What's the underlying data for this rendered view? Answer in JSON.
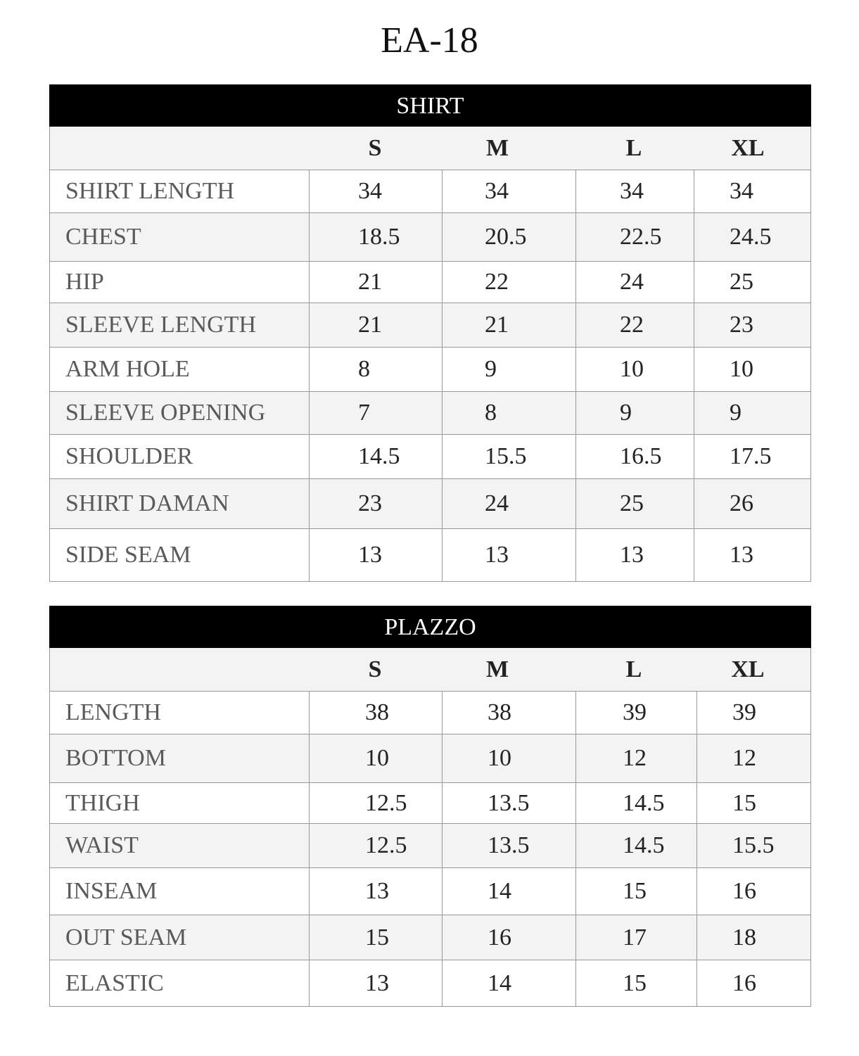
{
  "title": "EA-18",
  "tables": [
    {
      "name": "SHIRT",
      "sizes": [
        "S",
        "M",
        "L",
        "XL"
      ],
      "rows": [
        {
          "label": "SHIRT LENGTH",
          "values": [
            "34",
            "34",
            "34",
            "34"
          ]
        },
        {
          "label": "CHEST",
          "values": [
            "18.5",
            "20.5",
            "22.5",
            "24.5"
          ]
        },
        {
          "label": "HIP",
          "values": [
            "21",
            "22",
            "24",
            "25"
          ]
        },
        {
          "label": "SLEEVE LENGTH",
          "values": [
            "21",
            "21",
            "22",
            "23"
          ]
        },
        {
          "label": "ARM HOLE",
          "values": [
            "8",
            "9",
            "10",
            "10"
          ]
        },
        {
          "label": "SLEEVE OPENING",
          "values": [
            "7",
            "8",
            "9",
            "9"
          ]
        },
        {
          "label": "SHOULDER",
          "values": [
            "14.5",
            "15.5",
            "16.5",
            "17.5"
          ]
        },
        {
          "label": "SHIRT DAMAN",
          "values": [
            "23",
            "24",
            "25",
            "26"
          ]
        },
        {
          "label": "SIDE SEAM",
          "values": [
            "13",
            "13",
            "13",
            "13"
          ]
        }
      ]
    },
    {
      "name": "PLAZZO",
      "sizes": [
        "S",
        "M",
        "L",
        "XL"
      ],
      "rows": [
        {
          "label": "LENGTH",
          "values": [
            "38",
            "38",
            "39",
            "39"
          ]
        },
        {
          "label": "BOTTOM",
          "values": [
            "10",
            "10",
            "12",
            "12"
          ]
        },
        {
          "label": "THIGH",
          "values": [
            "12.5",
            "13.5",
            "14.5",
            "15"
          ]
        },
        {
          "label": "WAIST",
          "values": [
            "12.5",
            "13.5",
            "14.5",
            "15.5"
          ]
        },
        {
          "label": "INSEAM",
          "values": [
            "13",
            "14",
            "15",
            "16"
          ]
        },
        {
          "label": "OUT SEAM",
          "values": [
            "15",
            "16",
            "17",
            "18"
          ]
        },
        {
          "label": "ELASTIC",
          "values": [
            "13",
            "14",
            "15",
            "16"
          ]
        }
      ]
    }
  ]
}
